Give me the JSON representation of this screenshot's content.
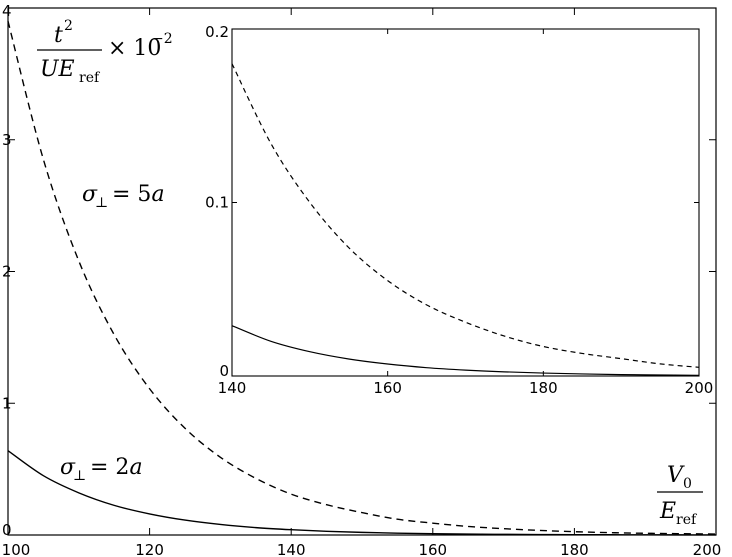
{
  "chart_data": [
    {
      "type": "line",
      "title": "",
      "xlabel": "",
      "ylabel": "",
      "xlim": [
        100,
        200
      ],
      "ylim": [
        0,
        4
      ],
      "xticks": [
        100,
        120,
        140,
        160,
        180,
        200
      ],
      "yticks": [
        0,
        1,
        2,
        3,
        4
      ],
      "xtick_labels": [
        "100",
        "120",
        "140",
        "160",
        "180",
        "200"
      ],
      "ytick_labels": [
        "0",
        "1",
        "2",
        "3",
        "4"
      ],
      "grid": false,
      "series": [
        {
          "name": "σ⊥ = 5a",
          "style": "dashed",
          "color": "#000000",
          "x": [
            100,
            105,
            110,
            115,
            120,
            125,
            130,
            135,
            140,
            145,
            150,
            155,
            160,
            165,
            170,
            175,
            180,
            185,
            190,
            195,
            200
          ],
          "y": [
            3.9,
            2.85,
            2.08,
            1.52,
            1.11,
            0.81,
            0.59,
            0.43,
            0.31,
            0.23,
            0.17,
            0.12,
            0.09,
            0.065,
            0.048,
            0.035,
            0.025,
            0.018,
            0.013,
            0.01,
            0.007
          ]
        },
        {
          "name": "σ⊥ = 2a",
          "style": "solid",
          "color": "#000000",
          "x": [
            100,
            105,
            110,
            115,
            120,
            125,
            130,
            135,
            140,
            145,
            150,
            155,
            160,
            165,
            170,
            175,
            180,
            185,
            190,
            195,
            200
          ],
          "y": [
            0.64,
            0.45,
            0.32,
            0.225,
            0.16,
            0.113,
            0.08,
            0.056,
            0.04,
            0.028,
            0.02,
            0.014,
            0.01,
            0.007,
            0.005,
            0.0035,
            0.0025,
            0.0018,
            0.0012,
            0.0009,
            0.0006
          ]
        }
      ],
      "annotations": [
        {
          "id": "label-5a",
          "text": "σ⊥ = 5a"
        },
        {
          "id": "label-2a",
          "text": "σ⊥ = 2a"
        }
      ],
      "axis_math": {
        "y_numerator": "t²",
        "y_denominator": "UE_ref",
        "y_factor": "× 10⁻²",
        "x_numerator": "V₀",
        "x_denominator": "E_ref"
      }
    },
    {
      "type": "line",
      "inset": true,
      "title": "",
      "xlabel": "",
      "ylabel": "",
      "xlim": [
        140,
        200
      ],
      "ylim": [
        0,
        0.2
      ],
      "xticks": [
        140,
        160,
        180,
        200
      ],
      "yticks": [
        0,
        0.1,
        0.2
      ],
      "xtick_labels": [
        "140",
        "160",
        "180",
        "200"
      ],
      "ytick_labels": [
        "0",
        "0.1",
        "0.2"
      ],
      "grid": false,
      "series": [
        {
          "name": "σ⊥ = 5a",
          "style": "dashed",
          "color": "#000000",
          "x": [
            140,
            145,
            150,
            155,
            160,
            165,
            170,
            175,
            180,
            185,
            190,
            195,
            200
          ],
          "y": [
            0.18,
            0.134,
            0.1,
            0.074,
            0.055,
            0.041,
            0.031,
            0.023,
            0.017,
            0.013,
            0.01,
            0.007,
            0.005
          ]
        },
        {
          "name": "σ⊥ = 2a",
          "style": "solid",
          "color": "#000000",
          "x": [
            140,
            145,
            150,
            155,
            160,
            165,
            170,
            175,
            180,
            185,
            190,
            195,
            200
          ],
          "y": [
            0.029,
            0.02,
            0.014,
            0.0098,
            0.0069,
            0.0048,
            0.0034,
            0.0024,
            0.0017,
            0.0012,
            0.0008,
            0.0006,
            0.0004
          ]
        }
      ]
    }
  ]
}
